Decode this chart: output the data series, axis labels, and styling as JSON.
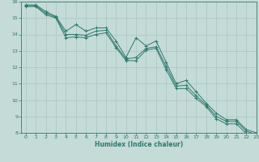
{
  "xlabel": "Humidex (Indice chaleur)",
  "background_color": "#c5dbd8",
  "grid_color": "#afc9c5",
  "line_color": "#2d7a6d",
  "x": [
    0,
    1,
    2,
    3,
    4,
    5,
    6,
    7,
    8,
    9,
    10,
    11,
    12,
    13,
    14,
    15,
    16,
    17,
    18,
    19,
    20,
    21,
    22,
    23
  ],
  "y_line1": [
    15.8,
    15.8,
    15.4,
    15.1,
    14.2,
    14.6,
    14.2,
    14.4,
    14.4,
    13.6,
    12.6,
    13.8,
    13.3,
    13.6,
    12.3,
    11.0,
    11.2,
    10.5,
    9.8,
    9.2,
    8.8,
    8.8,
    8.2,
    8.0
  ],
  "y_line2": [
    15.75,
    15.75,
    15.3,
    15.05,
    14.0,
    14.0,
    13.95,
    14.2,
    14.25,
    13.3,
    12.5,
    12.6,
    13.15,
    13.25,
    12.05,
    10.85,
    10.9,
    10.25,
    9.7,
    9.0,
    8.7,
    8.7,
    8.1,
    7.9
  ],
  "y_line3": [
    15.7,
    15.7,
    15.2,
    15.0,
    13.8,
    13.85,
    13.8,
    14.0,
    14.1,
    13.2,
    12.4,
    12.4,
    13.05,
    13.15,
    11.85,
    10.7,
    10.7,
    10.1,
    9.6,
    8.85,
    8.55,
    8.55,
    7.95,
    7.75
  ],
  "ylim": [
    8,
    16
  ],
  "xlim": [
    -0.5,
    23
  ],
  "yticks": [
    8,
    9,
    10,
    11,
    12,
    13,
    14,
    15,
    16
  ],
  "xticks": [
    0,
    1,
    2,
    3,
    4,
    5,
    6,
    7,
    8,
    9,
    10,
    11,
    12,
    13,
    14,
    15,
    16,
    17,
    18,
    19,
    20,
    21,
    22,
    23
  ]
}
